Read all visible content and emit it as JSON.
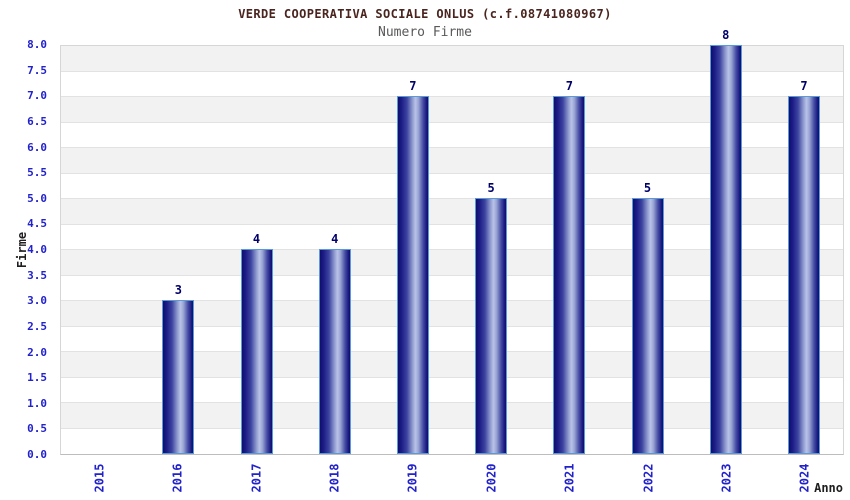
{
  "chart_data": {
    "type": "bar",
    "title": "VERDE COOPERATIVA SOCIALE ONLUS (c.f.08741080967)",
    "subtitle": "Numero Firme",
    "xlabel": "Anno",
    "ylabel": "Firme",
    "categories": [
      "2015",
      "2016",
      "2017",
      "2018",
      "2019",
      "2020",
      "2021",
      "2022",
      "2023",
      "2024"
    ],
    "values": [
      0,
      3,
      4,
      4,
      7,
      5,
      7,
      5,
      8,
      7
    ],
    "ylim": [
      0,
      8
    ],
    "ytick_step": 0.5,
    "ytick_labels_top_to_bottom": [
      "8.0",
      "7.5",
      "7.0",
      "6.5",
      "6.0",
      "5.5",
      "5.0",
      "4.5",
      "4.0",
      "3.5",
      "3.0",
      "2.5",
      "2.0",
      "1.5",
      "1.0",
      "0.5",
      "0.0"
    ],
    "grid": "horizontal alternating bands every 0.5, gray/white, gridline each 0.5",
    "legend": "none",
    "bar_labels_shown_for_nonzero_only": true
  },
  "colors": {
    "title": "#4a241f",
    "subtitle": "#595959",
    "axis_tick_text": "#2222cc",
    "bar_value_label": "#00006b",
    "axis_title_text": "#1f1f1f",
    "band_gray": "#f2f2f2",
    "grid_line": "#e2e2e2",
    "plot_border": "#d6d6d6",
    "bar_dark": "#0f0f6e",
    "bar_highlight": "#b9c3e8",
    "bar_border": "#5b9bd5",
    "background": "#ffffff"
  }
}
